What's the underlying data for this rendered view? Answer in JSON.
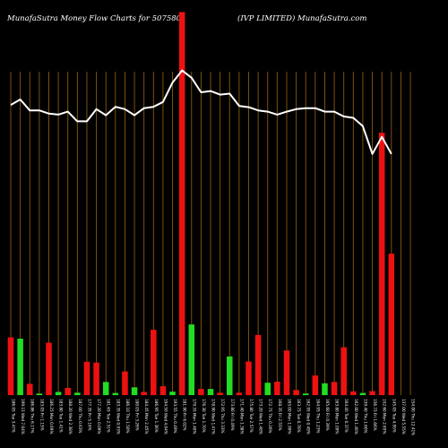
{
  "chart_data": {
    "type": "bar",
    "title_left": "MunafaSutra  Money Flow  Charts for 507580",
    "title_right": "(IVP LIMITED) MunafaSutra.com",
    "colors": {
      "background": "#000000",
      "grid": "#8a5a10",
      "up": "#22dd22",
      "down": "#ee1111",
      "line": "#ffffff"
    },
    "categories": [
      "186.05 Tue 3.47%",
      "199.15 Wed 7.04%",
      "186.86 Thu 6.17%",
      "183.05 Fri 1.15%",
      "186.25 Mon 0.69%",
      "183.80 Tue 1.41%",
      "188.20 Wed 2.38%",
      "187.00 Thu 0.63%",
      "177.35 Fri 5.16%",
      "177.20 Mon 0.09%",
      "181.65 Tue 2.51%",
      "183.35 Wed 0.93%",
      "186.10 Thu 1.50%",
      "180.05 Fri 3.26%",
      "184.45 Mon 2.45%",
      "186.95 Tue 1.36%",
      "194.50 Wed 4.04%",
      "193.55 Thu 0.49%",
      "181.90 Fri 6.02%",
      "179.35 Mon 1.40%",
      "176.30 Tue 1.70%",
      "178.90 Wed 1.47%",
      "172.95 Thu 3.33%",
      "173.80 Fri 0.49%",
      "171.40 Mon 1.38%",
      "175.80 Tue 2.57%",
      "173.20 Wed 1.48%",
      "172.75 Thu 0.26%",
      "168.35 Fri 2.55%",
      "165.00 Mon 1.99%",
      "163.75 Tue 0.76%",
      "162.95 Wed 0.49%",
      "164.95 Thu 1.23%",
      "165.60 Fri 0.39%",
      "163.80 Mon 1.09%",
      "164.40 Tue 0.37%",
      "162.00 Wed 1.46%",
      "159.40 Thu 1.60%",
      "156.75 Fri 1.66%",
      "152.60 Mon 2.65%",
      "145.05 Tue 4.95%",
      "137.00 Wed 5.55%",
      "154.00 Thu 12.41%"
    ],
    "bar_colors": [
      "down",
      "up",
      "down",
      "up",
      "down",
      "up",
      "down",
      "up",
      "down",
      "down",
      "up",
      "up",
      "down",
      "up",
      "down",
      "down",
      "down",
      "up",
      "down",
      "up",
      "down",
      "up",
      "down",
      "up",
      "down",
      "down",
      "down",
      "up",
      "down",
      "down",
      "down",
      "up",
      "down",
      "up",
      "down",
      "down",
      "down",
      "up",
      "down",
      "down",
      "down",
      "down",
      "up"
    ],
    "values": [
      21.5,
      21.0,
      4.2,
      0.6,
      19.5,
      1.2,
      2.7,
      0.9,
      12.4,
      12.1,
      4.9,
      0.8,
      8.8,
      2.9,
      1.2,
      24.3,
      3.3,
      1.3,
      142.5,
      26.3,
      2.3,
      2.3,
      0.9,
      14.4,
      0.9,
      12.5,
      22.4,
      4.6,
      5.0,
      16.6,
      1.9,
      0.6,
      7.3,
      4.4,
      4.9,
      17.8,
      1.4,
      0.8,
      1.5,
      97.6,
      52.6,
      0.0,
      0.0
    ],
    "line_values": [
      89.7,
      91.4,
      88.0,
      88.0,
      87.0,
      86.7,
      87.6,
      84.6,
      84.6,
      88.4,
      86.5,
      89.1,
      88.4,
      86.5,
      88.7,
      89.1,
      90.6,
      96.6,
      100.4,
      98.1,
      93.6,
      94.0,
      92.9,
      93.2,
      89.4,
      89.0,
      88.0,
      87.6,
      86.7,
      87.6,
      88.4,
      88.7,
      88.7,
      87.6,
      87.6,
      86.1,
      85.7,
      83.1,
      74.5,
      79.8,
      74.5,
      0.0,
      0.0
    ]
  }
}
